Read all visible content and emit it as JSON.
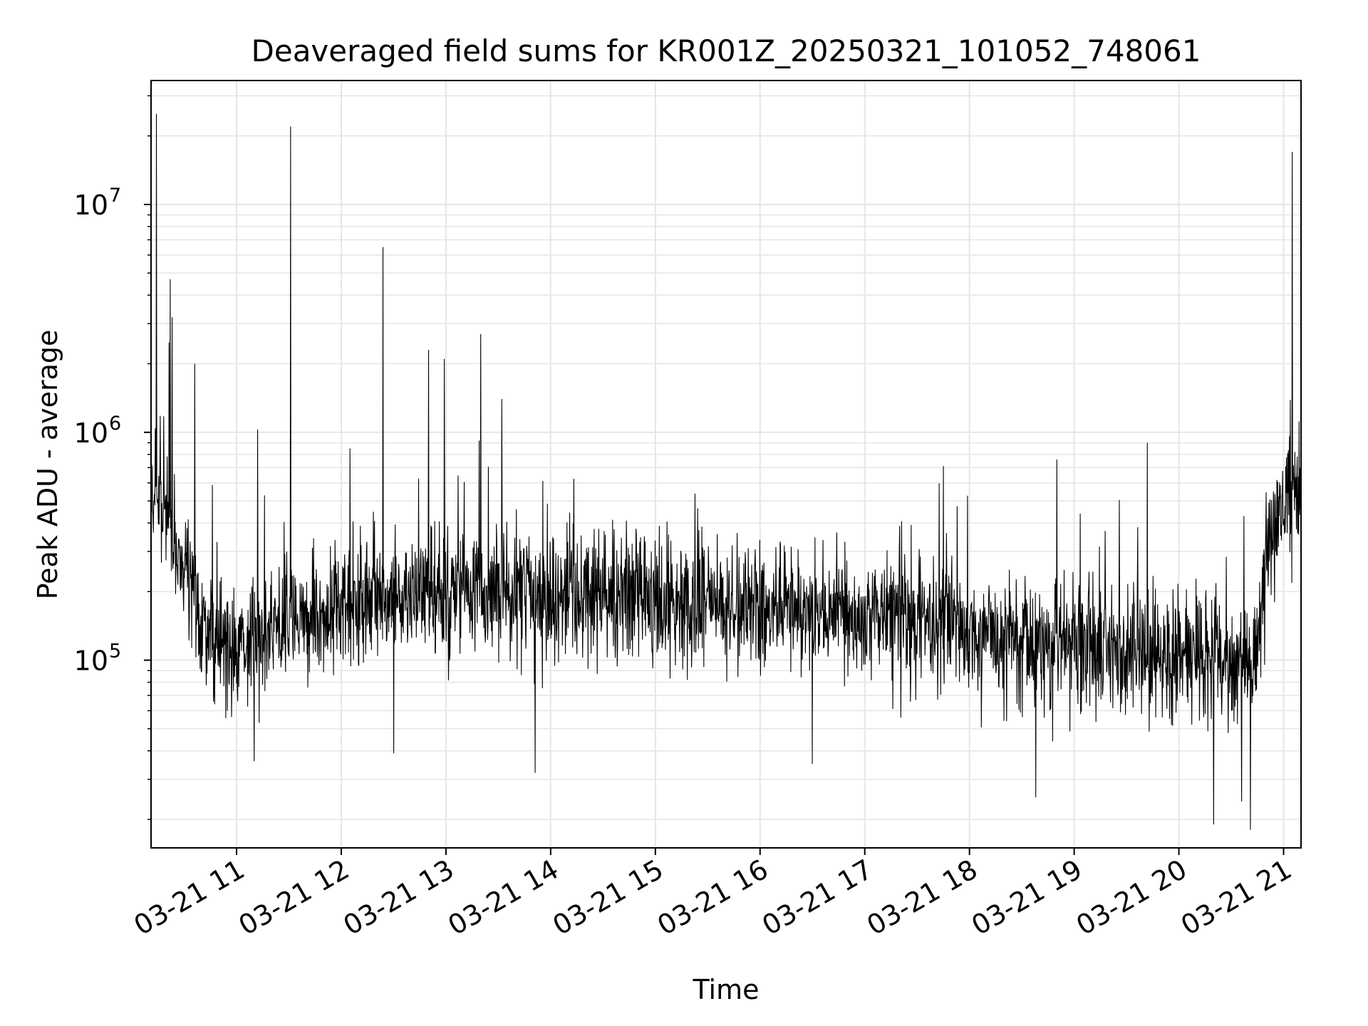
{
  "chart_data": {
    "type": "line",
    "title": "Deaveraged field sums for KR001Z_20250321_101052_748061",
    "xlabel": "Time",
    "ylabel": "Peak ADU - average",
    "x_axis": {
      "type": "datetime",
      "range": [
        "2025-03-21 10:11",
        "2025-03-21 21:10"
      ],
      "ticks": [
        {
          "value": "2025-03-21 11:00",
          "label": "03-21 11"
        },
        {
          "value": "2025-03-21 12:00",
          "label": "03-21 12"
        },
        {
          "value": "2025-03-21 13:00",
          "label": "03-21 13"
        },
        {
          "value": "2025-03-21 14:00",
          "label": "03-21 14"
        },
        {
          "value": "2025-03-21 15:00",
          "label": "03-21 15"
        },
        {
          "value": "2025-03-21 16:00",
          "label": "03-21 16"
        },
        {
          "value": "2025-03-21 17:00",
          "label": "03-21 17"
        },
        {
          "value": "2025-03-21 18:00",
          "label": "03-21 18"
        },
        {
          "value": "2025-03-21 19:00",
          "label": "03-21 19"
        },
        {
          "value": "2025-03-21 20:00",
          "label": "03-21 20"
        },
        {
          "value": "2025-03-21 21:00",
          "label": "03-21 21"
        }
      ]
    },
    "y_axis": {
      "scale": "log",
      "range": [
        15000,
        35000000
      ],
      "ticks": [
        {
          "value": 100000,
          "base": "10",
          "exp": "5"
        },
        {
          "value": 1000000,
          "base": "10",
          "exp": "6"
        },
        {
          "value": 10000000,
          "base": "10",
          "exp": "7"
        }
      ]
    },
    "grid": true,
    "line_color": "#000000",
    "grid_color": "#e6e6e6",
    "baseline_profile": [
      {
        "t": "2025-03-21 10:11",
        "v": 550000
      },
      {
        "t": "2025-03-21 10:20",
        "v": 450000
      },
      {
        "t": "2025-03-21 10:28",
        "v": 280000
      },
      {
        "t": "2025-03-21 10:36",
        "v": 200000
      },
      {
        "t": "2025-03-21 10:45",
        "v": 120000
      },
      {
        "t": "2025-03-21 11:00",
        "v": 115000
      },
      {
        "t": "2025-03-21 11:30",
        "v": 145000
      },
      {
        "t": "2025-03-21 12:00",
        "v": 170000
      },
      {
        "t": "2025-03-21 13:00",
        "v": 190000
      },
      {
        "t": "2025-03-21 14:00",
        "v": 185000
      },
      {
        "t": "2025-03-21 15:00",
        "v": 185000
      },
      {
        "t": "2025-03-21 16:00",
        "v": 170000
      },
      {
        "t": "2025-03-21 17:00",
        "v": 155000
      },
      {
        "t": "2025-03-21 18:00",
        "v": 130000
      },
      {
        "t": "2025-03-21 19:00",
        "v": 115000
      },
      {
        "t": "2025-03-21 20:00",
        "v": 100000
      },
      {
        "t": "2025-03-21 20:45",
        "v": 95000
      },
      {
        "t": "2025-03-21 20:50",
        "v": 320000
      },
      {
        "t": "2025-03-21 21:00",
        "v": 500000
      },
      {
        "t": "2025-03-21 21:10",
        "v": 550000
      }
    ],
    "noise_spread_decades": 0.2,
    "spikes": [
      {
        "t": "2025-03-21 10:14",
        "v": 25000000
      },
      {
        "t": "2025-03-21 10:22",
        "v": 4700000
      },
      {
        "t": "2025-03-21 10:23",
        "v": 3200000
      },
      {
        "t": "2025-03-21 10:36",
        "v": 2000000
      },
      {
        "t": "2025-03-21 11:12",
        "v": 1030000
      },
      {
        "t": "2025-03-21 11:31",
        "v": 22000000
      },
      {
        "t": "2025-03-21 12:05",
        "v": 850000
      },
      {
        "t": "2025-03-21 12:24",
        "v": 6500000
      },
      {
        "t": "2025-03-21 12:50",
        "v": 2300000
      },
      {
        "t": "2025-03-21 12:59",
        "v": 2100000
      },
      {
        "t": "2025-03-21 13:19",
        "v": 920000
      },
      {
        "t": "2025-03-21 13:20",
        "v": 2700000
      },
      {
        "t": "2025-03-21 13:32",
        "v": 1400000
      },
      {
        "t": "2025-03-21 18:50",
        "v": 760000
      },
      {
        "t": "2025-03-21 19:42",
        "v": 900000
      },
      {
        "t": "2025-03-21 21:05",
        "v": 17000000
      }
    ],
    "dips": [
      {
        "t": "2025-03-21 11:10",
        "v": 36000
      },
      {
        "t": "2025-03-21 12:30",
        "v": 39000
      },
      {
        "t": "2025-03-21 13:51",
        "v": 32000
      },
      {
        "t": "2025-03-21 16:30",
        "v": 35000
      },
      {
        "t": "2025-03-21 18:38",
        "v": 25000
      },
      {
        "t": "2025-03-21 20:20",
        "v": 19000
      },
      {
        "t": "2025-03-21 20:36",
        "v": 24000
      },
      {
        "t": "2025-03-21 20:41",
        "v": 18000
      }
    ]
  }
}
